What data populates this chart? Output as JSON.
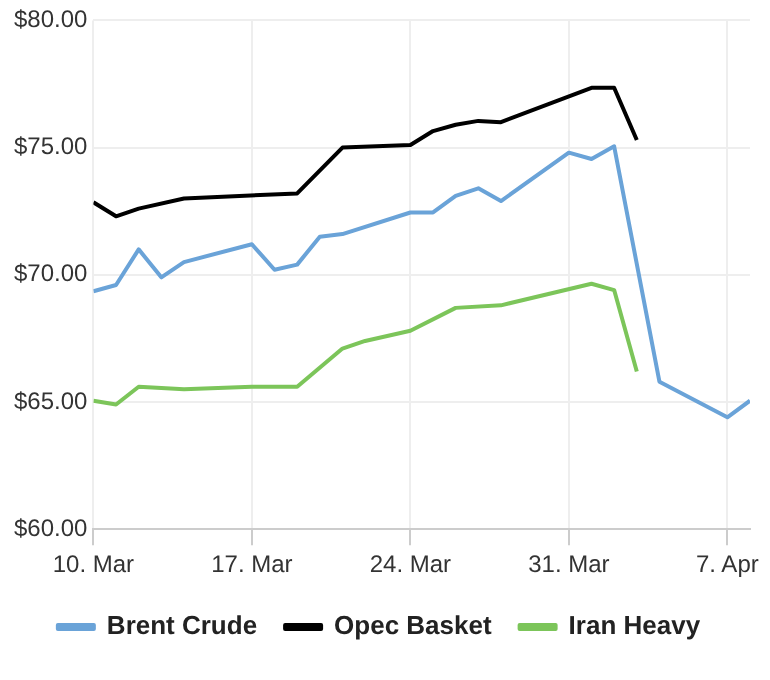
{
  "chart_data": {
    "type": "line",
    "xlim": [
      "--03-10",
      "--04-08"
    ],
    "xticks": [
      {
        "value": "--03-10",
        "label": "10. Mar"
      },
      {
        "value": "--03-17",
        "label": "17. Mar"
      },
      {
        "value": "--03-24",
        "label": "24. Mar"
      },
      {
        "value": "--03-31",
        "label": "31. Mar"
      },
      {
        "value": "--04-07",
        "label": "7. Apr"
      }
    ],
    "ylim": [
      60,
      80
    ],
    "yticks": [
      {
        "value": 60,
        "label": "$60.00"
      },
      {
        "value": 65,
        "label": "$65.00"
      },
      {
        "value": 70,
        "label": "$70.00"
      },
      {
        "value": 75,
        "label": "$75.00"
      },
      {
        "value": 80,
        "label": "$80.00"
      }
    ],
    "grid": true,
    "legend": "bottom",
    "marker": "none",
    "line_style": "solid",
    "series": [
      {
        "name": "Brent Crude",
        "color": "#6aa3d8",
        "x": [
          "--03-10",
          "--03-11",
          "--03-12",
          "--03-13",
          "--03-14",
          "--03-17",
          "--03-18",
          "--03-19",
          "--03-20",
          "--03-21",
          "--03-24",
          "--03-25",
          "--03-26",
          "--03-27",
          "--03-28",
          "--03-31",
          "--04-01",
          "--04-02",
          "--04-04",
          "--04-07",
          "--04-08"
        ],
        "values": [
          69.35,
          69.6,
          71.0,
          69.9,
          70.5,
          71.2,
          70.2,
          70.4,
          71.5,
          71.6,
          72.45,
          72.45,
          73.1,
          73.4,
          72.9,
          74.8,
          74.55,
          75.05,
          65.8,
          64.4,
          65.05
        ]
      },
      {
        "name": "Opec Basket",
        "color": "#000000",
        "x": [
          "--03-10",
          "--03-11",
          "--03-12",
          "--03-14",
          "--03-19",
          "--03-21",
          "--03-24",
          "--03-25",
          "--03-26",
          "--03-27",
          "--03-28",
          "--04-01",
          "--04-02",
          "--04-03"
        ],
        "values": [
          72.85,
          72.3,
          72.6,
          73.0,
          73.2,
          75.0,
          75.1,
          75.65,
          75.9,
          76.05,
          76.0,
          77.35,
          77.35,
          75.3
        ]
      },
      {
        "name": "Iran Heavy",
        "color": "#7cc55a",
        "x": [
          "--03-10",
          "--03-11",
          "--03-12",
          "--03-14",
          "--03-17",
          "--03-19",
          "--03-21",
          "--03-22",
          "--03-24",
          "--03-26",
          "--03-28",
          "--04-01",
          "--04-02",
          "--04-03"
        ],
        "values": [
          65.05,
          64.9,
          65.6,
          65.5,
          65.6,
          65.6,
          67.1,
          67.4,
          67.8,
          68.7,
          68.8,
          69.65,
          69.4,
          66.2
        ]
      }
    ]
  }
}
